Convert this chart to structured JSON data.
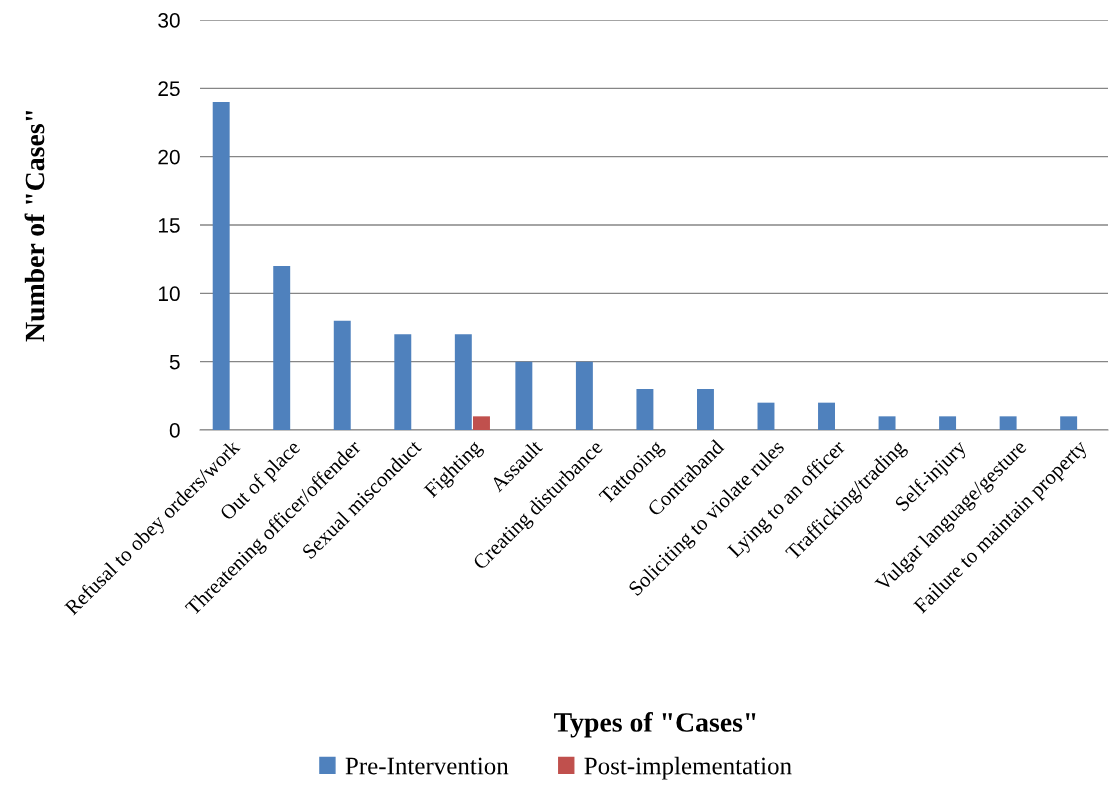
{
  "chart_data": {
    "type": "bar",
    "xlabel": "Types of \"Cases\"",
    "ylabel": "Number of \"Cases\"",
    "categories": [
      "Refusal to obey orders/work",
      "Out of place",
      "Threatening officer/offender",
      "Sexual misconduct",
      "Fighting",
      "Assault",
      "Creating disturbance",
      "Tattooing",
      "Contraband",
      "Soliciting to violate rules",
      "Lying to an officer",
      "Trafficking/trading",
      "Self-injury",
      "Vulgar language/gesture",
      "Failure to maintain property"
    ],
    "series": [
      {
        "name": "Pre-Intervention",
        "color": "#4f81bd",
        "values": [
          24,
          12,
          8,
          7,
          7,
          5,
          5,
          3,
          3,
          2,
          2,
          1,
          1,
          1,
          1
        ]
      },
      {
        "name": "Post-implementation",
        "color": "#c0504d",
        "values": [
          0,
          0,
          0,
          0,
          1,
          0,
          0,
          0,
          0,
          0,
          0,
          0,
          0,
          0,
          0
        ]
      }
    ],
    "ylim": [
      0,
      30
    ],
    "yticks": [
      0,
      5,
      10,
      15,
      20,
      25,
      30
    ],
    "grid": "y",
    "legend": "bottom"
  }
}
